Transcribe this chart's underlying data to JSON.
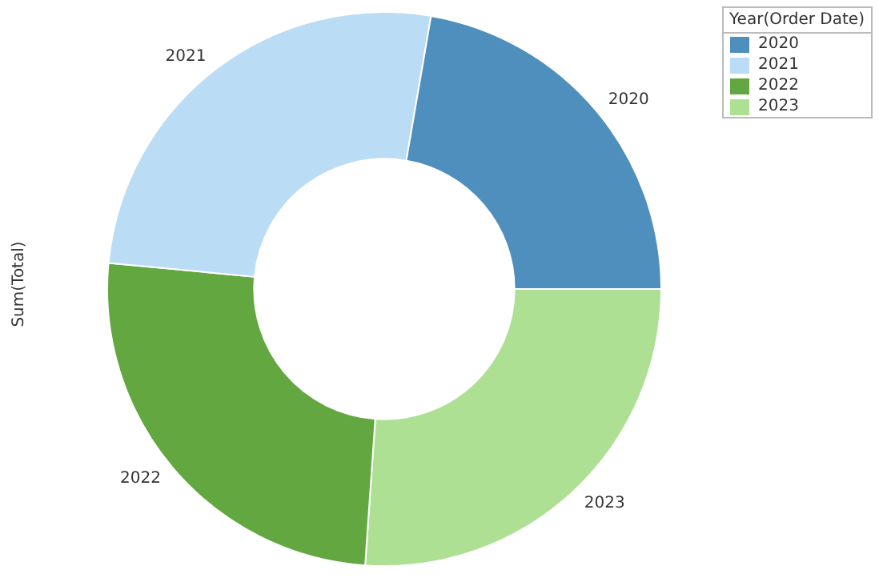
{
  "chart_data": {
    "type": "donut",
    "ylabel": "Sum(Total)",
    "legend_title": "Year(Order Date)",
    "legend": "top right",
    "categories": [
      "2020",
      "2021",
      "2022",
      "2023"
    ],
    "values": [
      22.3,
      26.2,
      25.4,
      26.1
    ],
    "colors": [
      "#4e8fbd",
      "#badcf4",
      "#62a73f",
      "#aee093"
    ]
  }
}
